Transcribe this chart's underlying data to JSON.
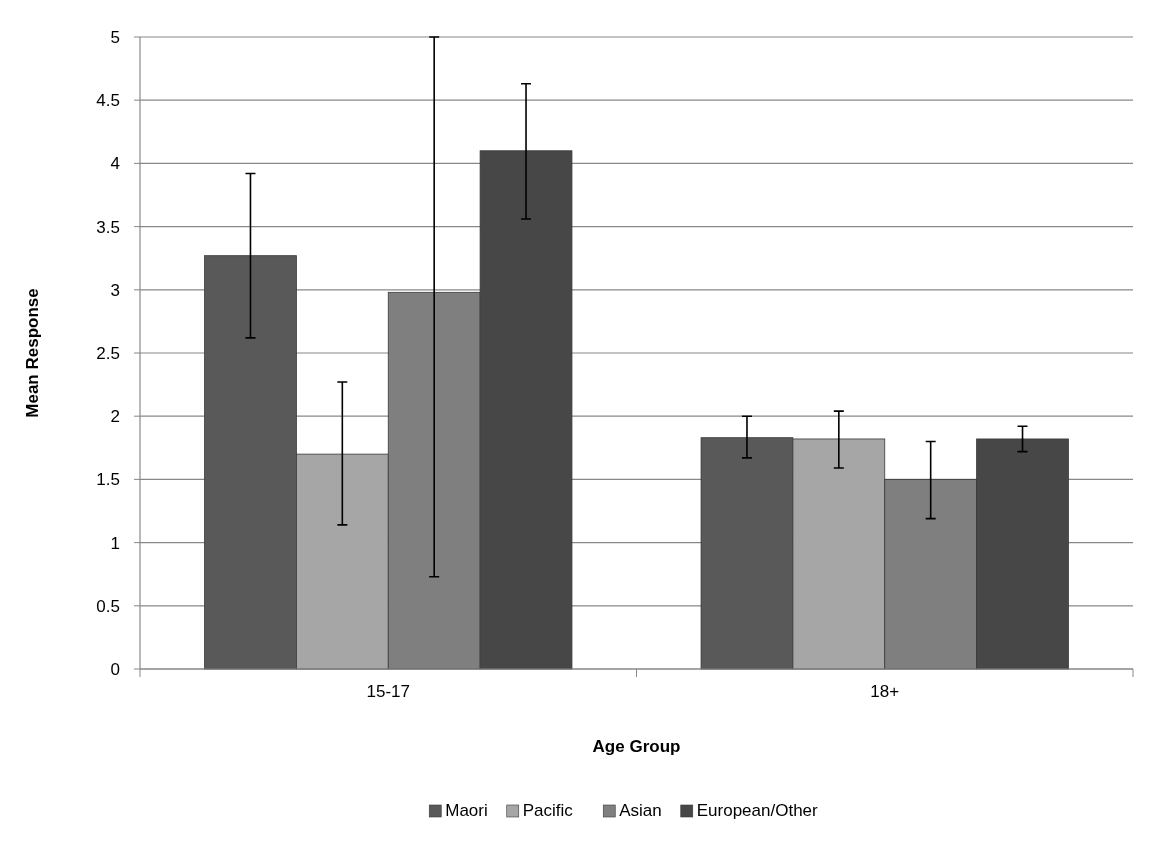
{
  "chart_data": {
    "type": "bar",
    "xlabel": "Age Group",
    "ylabel": "Mean Response",
    "categories": [
      "15-17",
      "18+"
    ],
    "series": [
      {
        "name": "Maori",
        "color": "#595959",
        "values": [
          3.27,
          1.83
        ],
        "errors": [
          [
            2.62,
            3.92
          ],
          [
            1.67,
            2.0
          ]
        ]
      },
      {
        "name": "Pacific",
        "color": "#a6a6a6",
        "values": [
          1.7,
          1.82
        ],
        "errors": [
          [
            1.14,
            2.27
          ],
          [
            1.59,
            2.04
          ]
        ]
      },
      {
        "name": "Asian",
        "color": "#7f7f7f",
        "values": [
          2.98,
          1.5
        ],
        "errors": [
          [
            0.73,
            5
          ],
          [
            1.19,
            1.8
          ]
        ]
      },
      {
        "name": "European/Other",
        "color": "#474747",
        "values": [
          4.1,
          1.82
        ],
        "errors": [
          [
            3.56,
            4.63
          ],
          [
            1.72,
            1.92
          ]
        ]
      }
    ],
    "ylim": [
      0,
      5
    ],
    "yticks": [
      0,
      0.5,
      1,
      1.5,
      2,
      2.5,
      3,
      3.5,
      4,
      4.5,
      5
    ],
    "grid": "y",
    "legend": "bottom"
  }
}
